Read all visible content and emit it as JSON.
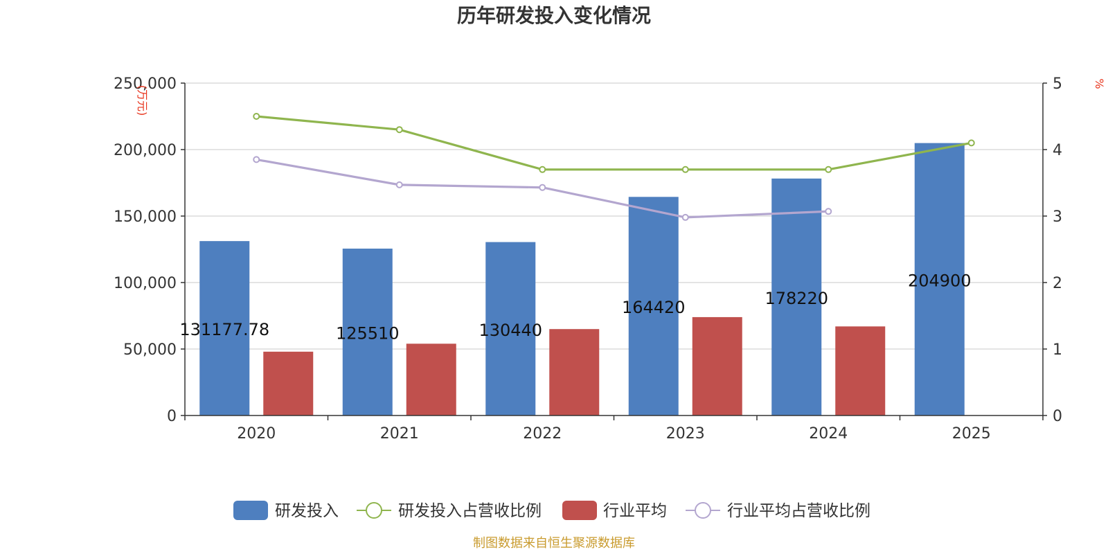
{
  "chart_data": {
    "type": "bar",
    "title": "历年研发投入变化情况",
    "categories": [
      "2020",
      "2021",
      "2022",
      "2023",
      "2024",
      "2025"
    ],
    "left_axis": {
      "unit": "(万元)",
      "ylim": [
        0,
        250000
      ],
      "ticks": [
        0,
        50000,
        100000,
        150000,
        200000,
        250000
      ],
      "tick_labels": [
        "0",
        "50,000",
        "100,000",
        "150,000",
        "200,000",
        "250,000"
      ]
    },
    "right_axis": {
      "unit": "%",
      "ylim": [
        0,
        5
      ],
      "ticks": [
        0,
        1,
        2,
        3,
        4,
        5
      ],
      "tick_labels": [
        "0",
        "1",
        "2",
        "3",
        "4",
        "5"
      ]
    },
    "series": [
      {
        "name": "研发投入",
        "type": "bar",
        "axis": "left",
        "color": "#4e7fbf",
        "values": [
          131177.78,
          125510,
          130440,
          164420,
          178220,
          204900
        ],
        "labels": [
          "131177.78",
          "125510",
          "130440",
          "164420",
          "178220",
          "204900"
        ]
      },
      {
        "name": "研发投入占营收比例",
        "type": "line",
        "axis": "right",
        "color": "#8fb54e",
        "values": [
          4.5,
          4.3,
          3.7,
          3.7,
          3.7,
          4.1
        ]
      },
      {
        "name": "行业平均",
        "type": "bar",
        "axis": "left",
        "color": "#c0504d",
        "values": [
          48000,
          54000,
          65000,
          74000,
          67000,
          null
        ]
      },
      {
        "name": "行业平均占营收比例",
        "type": "line",
        "axis": "right",
        "color": "#b3a6cf",
        "values": [
          3.85,
          3.47,
          3.43,
          2.98,
          3.07,
          null
        ]
      }
    ],
    "legend_position": "bottom",
    "grid": true
  },
  "source_note": "制图数据来自恒生聚源数据库"
}
